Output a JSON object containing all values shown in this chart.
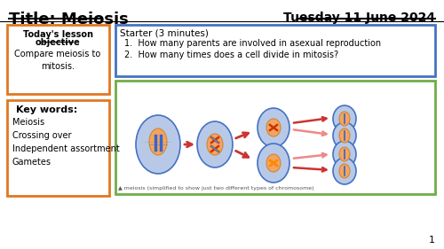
{
  "title_left": "Title: Meiosis",
  "title_right": "Tuesday 11 June 2024",
  "bg_color": "#ffffff",
  "objective_line1": "Today's lesson",
  "objective_line2": "objective",
  "objective_body": "Compare meiosis to\nmitosis.",
  "starter_title": "Starter (3 minutes)",
  "starter_items": [
    "How many parents are involved in asexual reproduction",
    "How many times does a cell divide in mitosis?"
  ],
  "keywords_title": "Key words:",
  "keywords": [
    "Meiosis",
    "Crossing over",
    "Independent assortment",
    "Gametes"
  ],
  "diagram_caption": "▲ meiosis (simplified to show just two different types of chromosome)",
  "orange_box_color": "#e07820",
  "blue_box_color": "#4472c4",
  "green_box_color": "#70ad47",
  "cell_fill": "#b8c9e8",
  "cell_border": "#4472c4",
  "nucleus_fill": "#f4a460",
  "page_number": "1"
}
